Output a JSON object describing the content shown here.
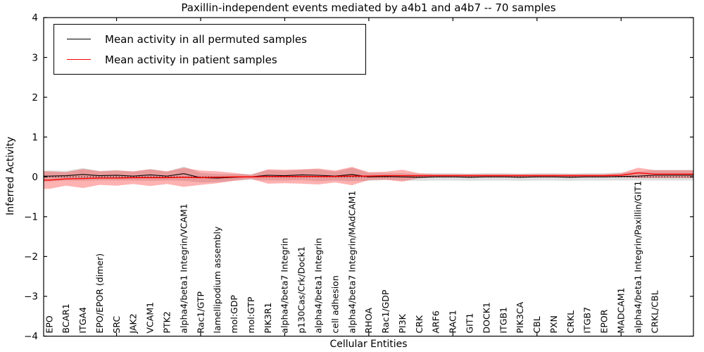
{
  "chart_data": {
    "type": "line",
    "title": "Paxillin-independent events mediated by a4b1 and a4b7 -- 70 samples",
    "xlabel": "Cellular Entities",
    "ylabel": "Inferred Activity",
    "ylim": [
      -4,
      4
    ],
    "yticks": [
      4,
      3,
      2,
      1,
      0,
      -1,
      -2,
      -3,
      -4
    ],
    "grid": false,
    "legend_position": "upper left",
    "zero_line": {
      "value": 0,
      "style": "dotted",
      "color": "#000000"
    },
    "categories": [
      "EPO",
      "BCAR1",
      "ITGA4",
      "EPO/EPOR (dimer)",
      "SRC",
      "JAK2",
      "VCAM1",
      "PTK2",
      "alpha4/beta1 Integrin/VCAM1",
      "Rac1/GTP",
      "lamellipodium assembly",
      "mol:GDP",
      "mol:GTP",
      "PIK3R1",
      "alpha4/beta7 Integrin",
      "p130Cas/Crk/Dock1",
      "alpha4/beta1 Integrin",
      "cell adhesion",
      "alpha4/beta7 Integrin/MAdCAM1",
      "RHOA",
      "Rac1/GDP",
      "PI3K",
      "CRK",
      "ARF6",
      "RAC1",
      "GIT1",
      "DOCK1",
      "ITGB1",
      "PIK3CA",
      "CBL",
      "PXN",
      "CRKL",
      "ITGB7",
      "EPOR",
      "MADCAM1",
      "alpha4/beta1 Integrin/Paxillin/GIT1",
      "CRKL/CBL"
    ],
    "series": [
      {
        "name": "Mean activity in all permuted samples",
        "color": "#000000",
        "values": [
          0.02,
          0.03,
          0.06,
          0.03,
          0.04,
          0.02,
          0.05,
          0.02,
          0.08,
          -0.02,
          -0.03,
          -0.01,
          0.0,
          0.04,
          0.03,
          0.05,
          0.04,
          0.02,
          0.06,
          0.0,
          0.01,
          0.0,
          -0.01,
          0.0,
          0.0,
          -0.01,
          0.0,
          0.0,
          -0.01,
          0.0,
          0.0,
          -0.01,
          0.0,
          0.0,
          0.01,
          0.02,
          0.04
        ],
        "band_half_width": [
          0.14,
          0.12,
          0.16,
          0.12,
          0.13,
          0.11,
          0.15,
          0.11,
          0.18,
          0.12,
          0.1,
          0.08,
          0.07,
          0.13,
          0.12,
          0.13,
          0.15,
          0.11,
          0.17,
          0.1,
          0.09,
          0.09,
          0.09,
          0.09,
          0.09,
          0.09,
          0.09,
          0.09,
          0.09,
          0.09,
          0.09,
          0.09,
          0.09,
          0.09,
          0.1,
          0.11,
          0.13
        ],
        "band_color": "#999999",
        "band_opacity": 0.32
      },
      {
        "name": "Mean activity in patient samples",
        "color": "#ff0000",
        "values": [
          -0.08,
          -0.05,
          -0.04,
          -0.03,
          -0.03,
          -0.02,
          -0.02,
          -0.02,
          -0.01,
          -0.02,
          -0.01,
          0.0,
          0.0,
          0.01,
          0.01,
          0.01,
          0.01,
          0.01,
          0.02,
          0.02,
          0.03,
          0.03,
          0.03,
          0.03,
          0.03,
          0.03,
          0.03,
          0.03,
          0.03,
          0.03,
          0.03,
          0.03,
          0.03,
          0.03,
          0.04,
          0.1,
          0.07
        ],
        "band_half_width": [
          0.22,
          0.17,
          0.24,
          0.17,
          0.19,
          0.16,
          0.21,
          0.16,
          0.24,
          0.18,
          0.15,
          0.1,
          0.05,
          0.18,
          0.17,
          0.18,
          0.2,
          0.15,
          0.23,
          0.1,
          0.1,
          0.15,
          0.06,
          0.04,
          0.04,
          0.04,
          0.04,
          0.04,
          0.04,
          0.04,
          0.04,
          0.04,
          0.04,
          0.04,
          0.05,
          0.13,
          0.1
        ],
        "band_color": "#ff0000",
        "band_opacity": 0.3
      }
    ]
  }
}
